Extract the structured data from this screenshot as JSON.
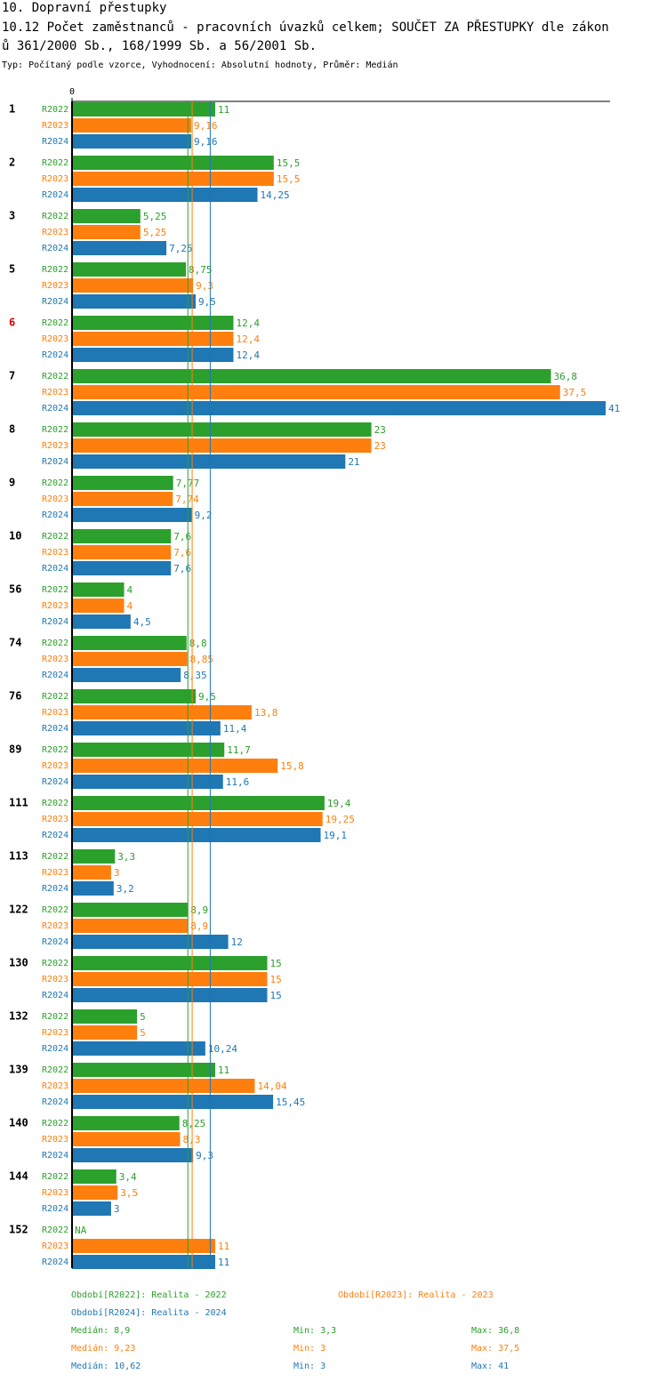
{
  "chart_data": {
    "type": "bar",
    "title": "10. Dopravní přestupky",
    "subtitle_lines": [
      "10.12 Počet zaměstnanců - pracovních úvazků celkem; SOUČET ZA PŘESTUPKY dle zákon",
      "ů 361/2000 Sb., 168/1999 Sb. a 56/2001 Sb."
    ],
    "note": "Typ: Počítaný podle vzorce, Vyhodnocení: Absolutní hodnoty, Průměr: Medián",
    "orientation": "horizontal",
    "categories": [
      "1",
      "2",
      "3",
      "5",
      "6",
      "7",
      "8",
      "9",
      "10",
      "56",
      "74",
      "76",
      "89",
      "111",
      "113",
      "122",
      "130",
      "132",
      "139",
      "140",
      "144",
      "152"
    ],
    "highlighted_categories": [
      "6"
    ],
    "highlight_color": "#e00000",
    "xlim": [
      0,
      41
    ],
    "xticks": [
      0
    ],
    "series": [
      {
        "name": "R2022",
        "legend": "Období[R2022]: Realita - 2022",
        "color": "#2ca02c",
        "values": [
          11,
          15.5,
          5.25,
          8.75,
          12.4,
          36.8,
          23,
          7.77,
          7.6,
          4,
          8.8,
          9.5,
          11.7,
          19.4,
          3.3,
          8.9,
          15,
          5,
          11,
          8.25,
          3.4,
          null
        ],
        "value_labels": [
          "11",
          "15,5",
          "5,25",
          "8,75",
          "12,4",
          "36,8",
          "23",
          "7,77",
          "7,6",
          "4",
          "8,8",
          "9,5",
          "11,7",
          "19,4",
          "3,3",
          "8,9",
          "15",
          "5",
          "11",
          "8,25",
          "3,4",
          "NA"
        ],
        "median": 8.9,
        "median_label": "Medián: 8,9",
        "min_label": "Min: 3,3",
        "max_label": "Max: 36,8"
      },
      {
        "name": "R2023",
        "legend": "Období[R2023]: Realita - 2023",
        "color": "#ff7f0e",
        "values": [
          9.16,
          15.5,
          5.25,
          9.3,
          12.4,
          37.5,
          23,
          7.74,
          7.6,
          4,
          8.85,
          13.8,
          15.8,
          19.25,
          3,
          8.9,
          15,
          5,
          14.04,
          8.3,
          3.5,
          11
        ],
        "value_labels": [
          "9,16",
          "15,5",
          "5,25",
          "9,3",
          "12,4",
          "37,5",
          "23",
          "7,74",
          "7,6",
          "4",
          "8,85",
          "13,8",
          "15,8",
          "19,25",
          "3",
          "8,9",
          "15",
          "5",
          "14,04",
          "8,3",
          "3,5",
          "11"
        ],
        "median": 9.23,
        "median_label": "Medián: 9,23",
        "min_label": "Min: 3",
        "max_label": "Max: 37,5"
      },
      {
        "name": "R2024",
        "legend": "Období[R2024]: Realita - 2024",
        "color": "#1f77b4",
        "values": [
          9.16,
          14.25,
          7.25,
          9.5,
          12.4,
          41,
          21,
          9.2,
          7.6,
          4.5,
          8.35,
          11.4,
          11.6,
          19.1,
          3.2,
          12,
          15,
          10.24,
          15.45,
          9.3,
          3,
          11
        ],
        "value_labels": [
          "9,16",
          "14,25",
          "7,25",
          "9,5",
          "12,4",
          "41",
          "21",
          "9,2",
          "7,6",
          "4,5",
          "8,35",
          "11,4",
          "11,6",
          "19,1",
          "3,2",
          "12",
          "15",
          "10,24",
          "15,45",
          "9,3",
          "3",
          "11"
        ],
        "median": 10.62,
        "median_label": "Medián: 10,62",
        "min_label": "Min: 3",
        "max_label": "Max: 41"
      }
    ]
  }
}
